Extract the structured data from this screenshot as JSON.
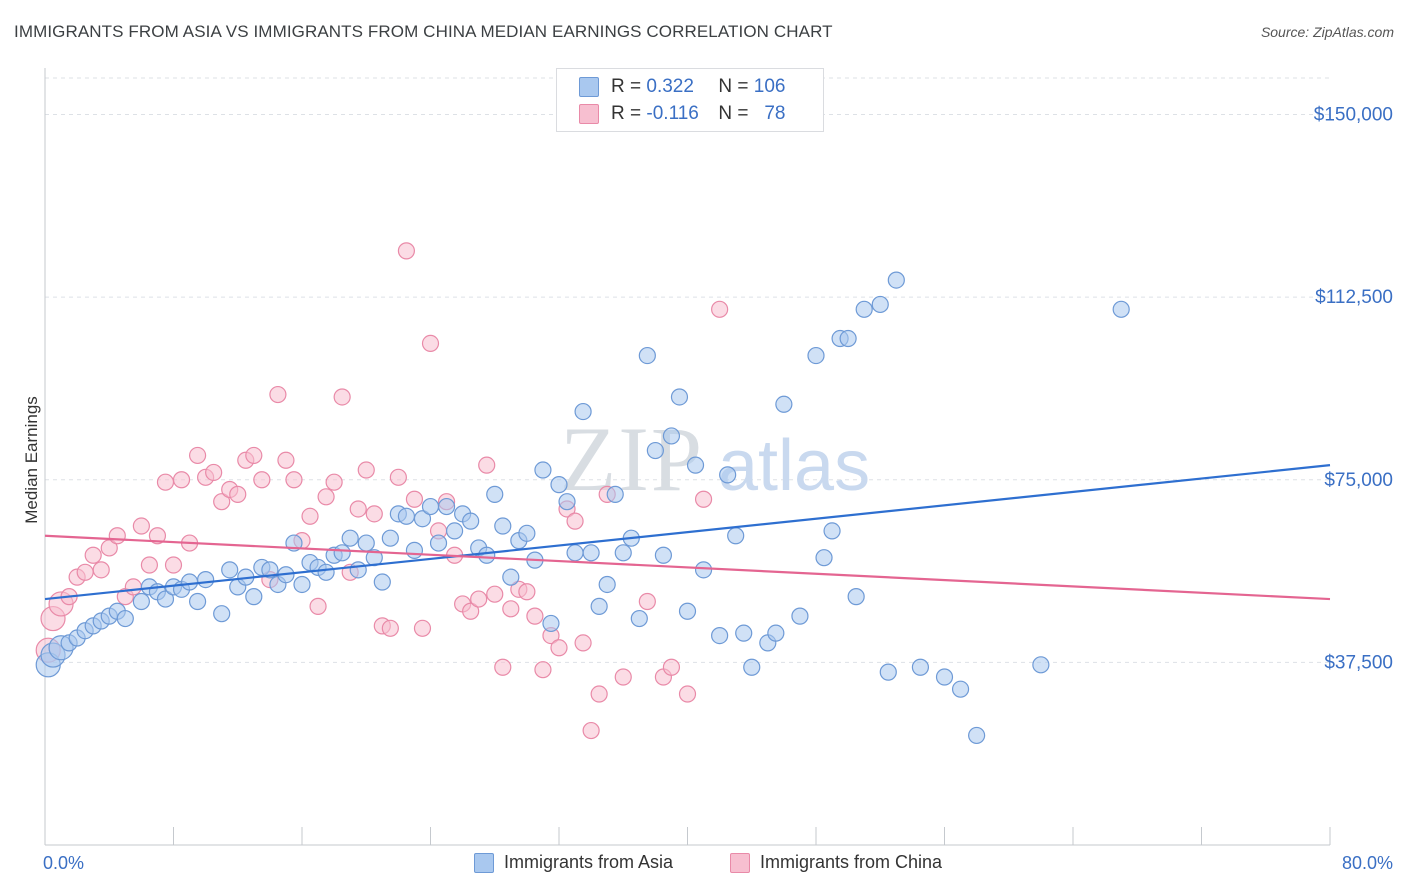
{
  "header": {
    "title": "IMMIGRANTS FROM ASIA VS IMMIGRANTS FROM CHINA MEDIAN EARNINGS CORRELATION CHART",
    "source": "Source: ZipAtlas.com"
  },
  "watermark": {
    "part1": "ZIP",
    "part2": "atlas"
  },
  "colors": {
    "blue_fill": "#a9c8ef",
    "blue_stroke": "#6e9ad6",
    "blue_line": "#2e6fd0",
    "pink_fill": "#f7bfd0",
    "pink_stroke": "#e98aa8",
    "pink_line": "#e46591",
    "axis_label": "#3a6fc4",
    "grid": "#dde1e6"
  },
  "legend": {
    "rows": [
      {
        "r_label": "R =",
        "r_value": "0.322",
        "n_label": "N =",
        "n_value": "106",
        "color": "blue"
      },
      {
        "r_label": "R =",
        "r_value": "-0.116",
        "n_label": "N =",
        "n_value": "78",
        "color": "pink"
      }
    ]
  },
  "bottom_legend": {
    "series1": "Immigrants from Asia",
    "series2": "Immigrants from China"
  },
  "chart_data": {
    "type": "scatter",
    "xlabel": "",
    "ylabel": "Median Earnings",
    "xlim": [
      0,
      80
    ],
    "ylim": [
      0,
      157500
    ],
    "x_tick_labels": [
      "0.0%",
      "80.0%"
    ],
    "y_ticks": [
      37500,
      75000,
      112500,
      150000
    ],
    "y_tick_labels": [
      "$37,500",
      "$75,000",
      "$112,500",
      "$150,000"
    ],
    "grid": true,
    "legend_position": "top-center",
    "series": [
      {
        "name": "Immigrants from Asia",
        "color": "blue",
        "trend": [
          [
            0,
            50500
          ],
          [
            80,
            78000
          ]
        ],
        "points": [
          [
            0.2,
            37000
          ],
          [
            0.5,
            39000
          ],
          [
            1.0,
            40500
          ],
          [
            1.5,
            41500
          ],
          [
            2.0,
            42500
          ],
          [
            2.5,
            44000
          ],
          [
            3.0,
            45000
          ],
          [
            3.5,
            46000
          ],
          [
            4.0,
            47000
          ],
          [
            4.5,
            48000
          ],
          [
            5.0,
            46500
          ],
          [
            6.0,
            50000
          ],
          [
            6.5,
            53000
          ],
          [
            7.0,
            52000
          ],
          [
            7.5,
            50500
          ],
          [
            8.0,
            53000
          ],
          [
            8.5,
            52500
          ],
          [
            9.0,
            54000
          ],
          [
            9.5,
            50000
          ],
          [
            10.0,
            54500
          ],
          [
            11.0,
            47500
          ],
          [
            11.5,
            56500
          ],
          [
            12.0,
            53000
          ],
          [
            12.5,
            55000
          ],
          [
            13.0,
            51000
          ],
          [
            13.5,
            57000
          ],
          [
            14.0,
            56500
          ],
          [
            14.5,
            53500
          ],
          [
            15.0,
            55500
          ],
          [
            15.5,
            62000
          ],
          [
            16.0,
            53500
          ],
          [
            16.5,
            58000
          ],
          [
            17.0,
            57000
          ],
          [
            17.5,
            56000
          ],
          [
            18.0,
            59500
          ],
          [
            18.5,
            60000
          ],
          [
            19.0,
            63000
          ],
          [
            19.5,
            56500
          ],
          [
            20.0,
            62000
          ],
          [
            20.5,
            59000
          ],
          [
            21.0,
            54000
          ],
          [
            21.5,
            63000
          ],
          [
            22.0,
            68000
          ],
          [
            22.5,
            67500
          ],
          [
            23.0,
            60500
          ],
          [
            23.5,
            67000
          ],
          [
            24.0,
            69500
          ],
          [
            24.5,
            62000
          ],
          [
            25.0,
            69500
          ],
          [
            25.5,
            64500
          ],
          [
            26.0,
            68000
          ],
          [
            26.5,
            66500
          ],
          [
            27.0,
            61000
          ],
          [
            27.5,
            59500
          ],
          [
            28.0,
            72000
          ],
          [
            28.5,
            65500
          ],
          [
            29.0,
            55000
          ],
          [
            29.5,
            62500
          ],
          [
            30.0,
            64000
          ],
          [
            30.5,
            58500
          ],
          [
            31.0,
            77000
          ],
          [
            31.5,
            45500
          ],
          [
            32.0,
            74000
          ],
          [
            32.5,
            70500
          ],
          [
            33.0,
            60000
          ],
          [
            33.5,
            89000
          ],
          [
            34.0,
            60000
          ],
          [
            34.5,
            49000
          ],
          [
            35.0,
            53500
          ],
          [
            35.5,
            72000
          ],
          [
            36.0,
            60000
          ],
          [
            36.5,
            63000
          ],
          [
            37.0,
            46500
          ],
          [
            37.5,
            100500
          ],
          [
            38.0,
            81000
          ],
          [
            38.5,
            59500
          ],
          [
            39.0,
            84000
          ],
          [
            39.5,
            92000
          ],
          [
            40.0,
            48000
          ],
          [
            40.5,
            78000
          ],
          [
            41.0,
            56500
          ],
          [
            42.0,
            43000
          ],
          [
            42.5,
            76000
          ],
          [
            43.0,
            63500
          ],
          [
            43.5,
            43500
          ],
          [
            44.0,
            36500
          ],
          [
            45.0,
            41500
          ],
          [
            45.5,
            43500
          ],
          [
            46.0,
            90500
          ],
          [
            47.0,
            47000
          ],
          [
            48.0,
            100500
          ],
          [
            48.5,
            59000
          ],
          [
            49.0,
            64500
          ],
          [
            49.5,
            104000
          ],
          [
            50.0,
            104000
          ],
          [
            50.5,
            51000
          ],
          [
            51.0,
            110000
          ],
          [
            52.0,
            111000
          ],
          [
            52.5,
            35500
          ],
          [
            53.0,
            116000
          ],
          [
            54.5,
            36500
          ],
          [
            56.0,
            34500
          ],
          [
            57.0,
            32000
          ],
          [
            58.0,
            22500
          ],
          [
            62.0,
            37000
          ],
          [
            67.0,
            110000
          ]
        ]
      },
      {
        "name": "Immigrants from China",
        "color": "pink",
        "trend": [
          [
            0,
            63500
          ],
          [
            80,
            50500
          ]
        ],
        "points": [
          [
            0.2,
            40000
          ],
          [
            0.5,
            46500
          ],
          [
            1.0,
            49500
          ],
          [
            1.5,
            51000
          ],
          [
            2.0,
            55000
          ],
          [
            2.5,
            56000
          ],
          [
            3.0,
            59500
          ],
          [
            3.5,
            56500
          ],
          [
            4.0,
            61000
          ],
          [
            4.5,
            63500
          ],
          [
            5.0,
            51000
          ],
          [
            5.5,
            53000
          ],
          [
            6.0,
            65500
          ],
          [
            6.5,
            57500
          ],
          [
            7.0,
            63500
          ],
          [
            7.5,
            74500
          ],
          [
            8.0,
            57500
          ],
          [
            8.5,
            75000
          ],
          [
            9.0,
            62000
          ],
          [
            9.5,
            80000
          ],
          [
            10.0,
            75500
          ],
          [
            10.5,
            76500
          ],
          [
            11.0,
            70500
          ],
          [
            11.5,
            73000
          ],
          [
            12.0,
            72000
          ],
          [
            12.5,
            79000
          ],
          [
            13.0,
            80000
          ],
          [
            13.5,
            75000
          ],
          [
            14.0,
            54500
          ],
          [
            14.5,
            92500
          ],
          [
            15.0,
            79000
          ],
          [
            15.5,
            75000
          ],
          [
            16.0,
            62500
          ],
          [
            16.5,
            67500
          ],
          [
            17.0,
            49000
          ],
          [
            17.5,
            71500
          ],
          [
            18.0,
            74500
          ],
          [
            18.5,
            92000
          ],
          [
            19.0,
            56000
          ],
          [
            19.5,
            69000
          ],
          [
            20.0,
            77000
          ],
          [
            20.5,
            68000
          ],
          [
            21.0,
            45000
          ],
          [
            21.5,
            44500
          ],
          [
            22.0,
            75500
          ],
          [
            22.5,
            122000
          ],
          [
            23.0,
            71000
          ],
          [
            23.5,
            44500
          ],
          [
            24.0,
            103000
          ],
          [
            24.5,
            64500
          ],
          [
            25.0,
            70500
          ],
          [
            25.5,
            59500
          ],
          [
            26.0,
            49500
          ],
          [
            26.5,
            48000
          ],
          [
            27.0,
            50500
          ],
          [
            27.5,
            78000
          ],
          [
            28.0,
            51500
          ],
          [
            28.5,
            36500
          ],
          [
            29.0,
            48500
          ],
          [
            29.5,
            52500
          ],
          [
            30.0,
            52000
          ],
          [
            30.5,
            47000
          ],
          [
            31.0,
            36000
          ],
          [
            31.5,
            43000
          ],
          [
            32.0,
            40500
          ],
          [
            32.5,
            69000
          ],
          [
            33.0,
            66500
          ],
          [
            33.5,
            41500
          ],
          [
            34.0,
            23500
          ],
          [
            34.5,
            31000
          ],
          [
            35.0,
            72000
          ],
          [
            36.0,
            34500
          ],
          [
            37.5,
            50000
          ],
          [
            38.5,
            34500
          ],
          [
            39.0,
            36500
          ],
          [
            40.0,
            31000
          ],
          [
            41.0,
            71000
          ],
          [
            42.0,
            110000
          ]
        ]
      }
    ]
  }
}
